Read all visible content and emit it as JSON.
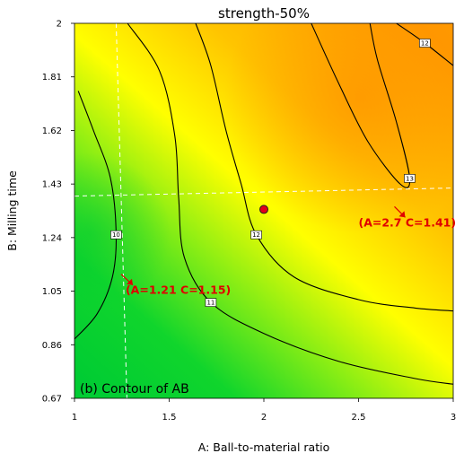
{
  "chart_data": {
    "type": "heatmap",
    "title": "strength-50%",
    "xlabel": "A: Ball-to-material ratio",
    "ylabel": "B: Milling time",
    "xlim": [
      1,
      3
    ],
    "ylim": [
      0.67,
      2
    ],
    "x_ticks": [
      "1",
      "1.5",
      "2",
      "2.5",
      "3"
    ],
    "y_ticks": [
      "2",
      "1.81",
      "1.62",
      "1.43",
      "1.24",
      "1.05",
      "0.86",
      "0.67"
    ],
    "colorscale": [
      "#00cc33",
      "#ffff00",
      "#ff9900"
    ],
    "contour_levels": [
      {
        "label": "10",
        "points": [
          [
            1.0,
            0.88
          ],
          [
            1.12,
            0.97
          ],
          [
            1.2,
            1.1
          ],
          [
            1.22,
            1.25
          ],
          [
            1.19,
            1.45
          ],
          [
            1.1,
            1.62
          ],
          [
            1.02,
            1.76
          ]
        ]
      },
      {
        "label": "11",
        "points": [
          [
            1.28,
            2.0
          ],
          [
            1.45,
            1.83
          ],
          [
            1.53,
            1.6
          ],
          [
            1.55,
            1.38
          ],
          [
            1.58,
            1.17
          ],
          [
            1.72,
            1.01
          ],
          [
            2.0,
            0.9
          ],
          [
            2.4,
            0.8
          ],
          [
            2.8,
            0.74
          ],
          [
            3.0,
            0.72
          ]
        ]
      },
      {
        "label": "12",
        "points": [
          [
            1.64,
            2.0
          ],
          [
            1.72,
            1.85
          ],
          [
            1.8,
            1.62
          ],
          [
            1.88,
            1.43
          ],
          [
            1.96,
            1.25
          ],
          [
            2.16,
            1.1
          ],
          [
            2.5,
            1.02
          ],
          [
            2.8,
            0.99
          ],
          [
            3.0,
            0.98
          ]
        ]
      },
      {
        "label": "12",
        "points": [
          [
            2.7,
            2.0
          ],
          [
            2.85,
            1.93
          ],
          [
            3.0,
            1.85
          ]
        ]
      },
      {
        "label": "13",
        "points": [
          [
            2.25,
            2.0
          ],
          [
            2.4,
            1.78
          ],
          [
            2.55,
            1.58
          ],
          [
            2.72,
            1.43
          ],
          [
            2.77,
            1.45
          ],
          [
            2.7,
            1.65
          ],
          [
            2.6,
            1.87
          ],
          [
            2.56,
            2.0
          ]
        ]
      }
    ],
    "reference_lines": {
      "x": [
        1.22
      ],
      "y": [
        1.4
      ]
    },
    "point": {
      "x": 2.0,
      "y": 1.34
    },
    "annotations": [
      {
        "text": "(A=2.7 C=1.41)",
        "x": 2.5,
        "y": 1.28
      },
      {
        "text": "(A=1.21 C=1.15)",
        "x": 1.27,
        "y": 1.04
      }
    ],
    "panel_label": "(b) Contour of AB"
  }
}
